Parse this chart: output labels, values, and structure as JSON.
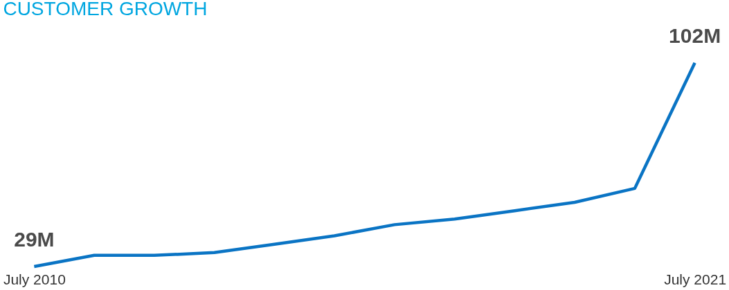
{
  "chart_data": {
    "type": "line",
    "title": "CUSTOMER GROWTH",
    "categories": [
      "July 2010",
      null,
      null,
      null,
      null,
      null,
      null,
      null,
      null,
      null,
      null,
      "July 2021"
    ],
    "series": [
      {
        "color": "#0a74c4",
        "values": [
          29,
          33,
          33,
          34,
          37,
          40,
          44,
          46,
          49,
          52,
          57,
          102
        ],
        "value_labels": [
          "29M",
          null,
          null,
          null,
          null,
          null,
          null,
          null,
          null,
          null,
          null,
          "102M"
        ]
      }
    ],
    "grid": false,
    "marker": "none",
    "line_style": "solid",
    "tick_labels": "x"
  }
}
